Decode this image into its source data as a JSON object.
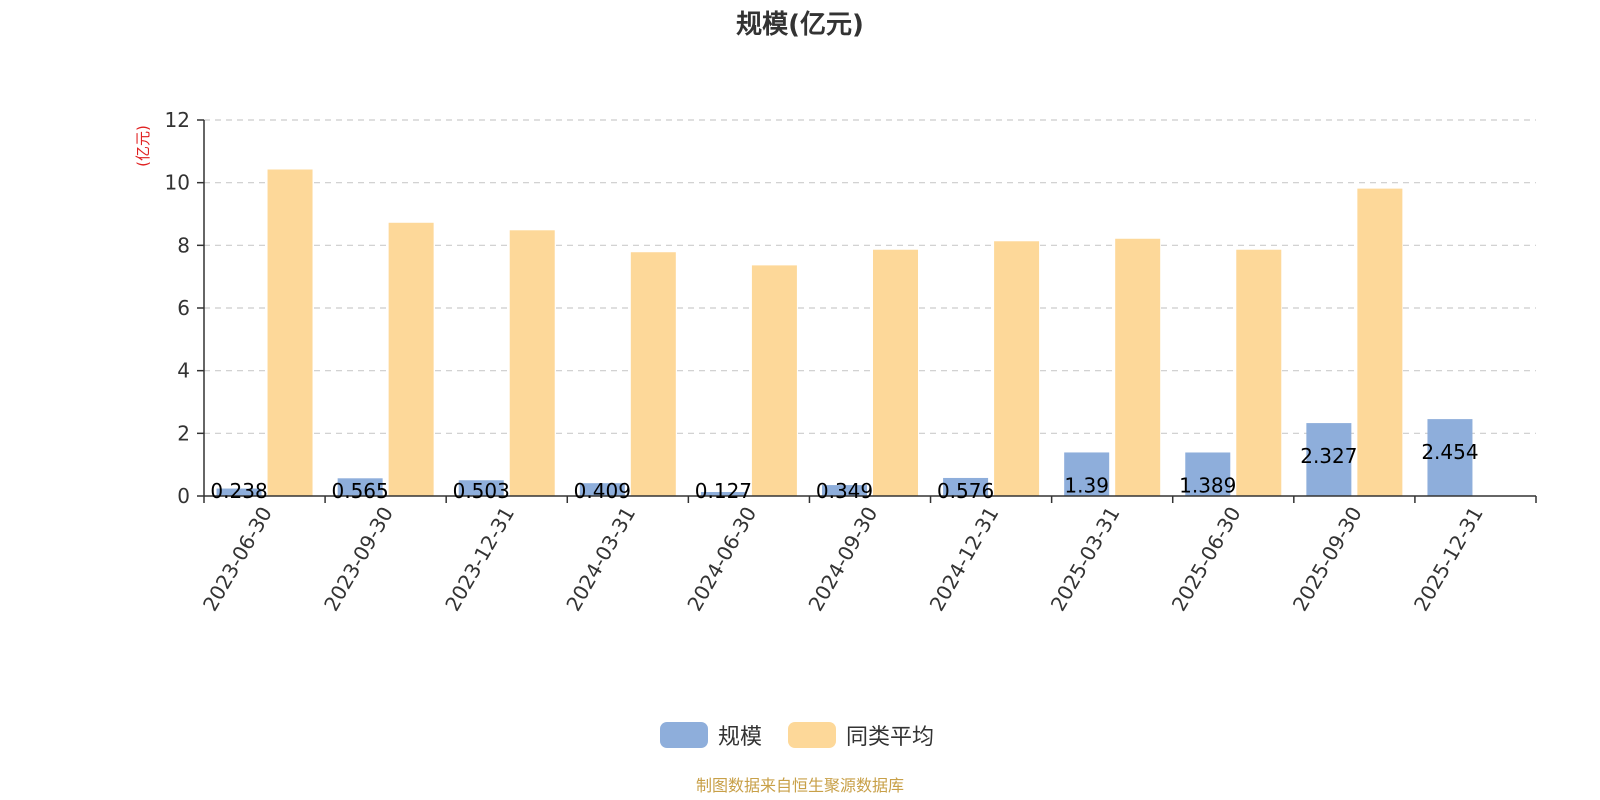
{
  "chart_data": {
    "type": "bar",
    "title": "规模(亿元)",
    "ylabel": "(亿元)",
    "xlabel": "",
    "ylim": [
      0,
      12
    ],
    "yticks": [
      0,
      2,
      4,
      6,
      8,
      10,
      12
    ],
    "grid": true,
    "legend_position": "bottom",
    "categories": [
      "2023-06-30",
      "2023-09-30",
      "2023-12-31",
      "2024-03-31",
      "2024-06-30",
      "2024-09-30",
      "2024-12-31",
      "2025-03-31",
      "2025-06-30",
      "2025-09-30",
      "2025-12-31"
    ],
    "series": [
      {
        "name": "规模",
        "color": "#8eaedb",
        "values": [
          0.238,
          0.565,
          0.503,
          0.409,
          0.127,
          0.349,
          0.576,
          1.39,
          1.389,
          2.327,
          2.454
        ],
        "labels": [
          "0.238",
          "0.565",
          "0.503",
          "0.409",
          "0.127",
          "0.349",
          "0.576",
          "1.39",
          "1.389",
          "2.327",
          "2.454"
        ]
      },
      {
        "name": "同类平均",
        "color": "#fdd899",
        "values": [
          10.42,
          8.72,
          8.48,
          7.78,
          7.36,
          7.86,
          8.13,
          8.21,
          7.86,
          9.81,
          null
        ]
      }
    ],
    "source": "制图数据来自恒生聚源数据库"
  }
}
